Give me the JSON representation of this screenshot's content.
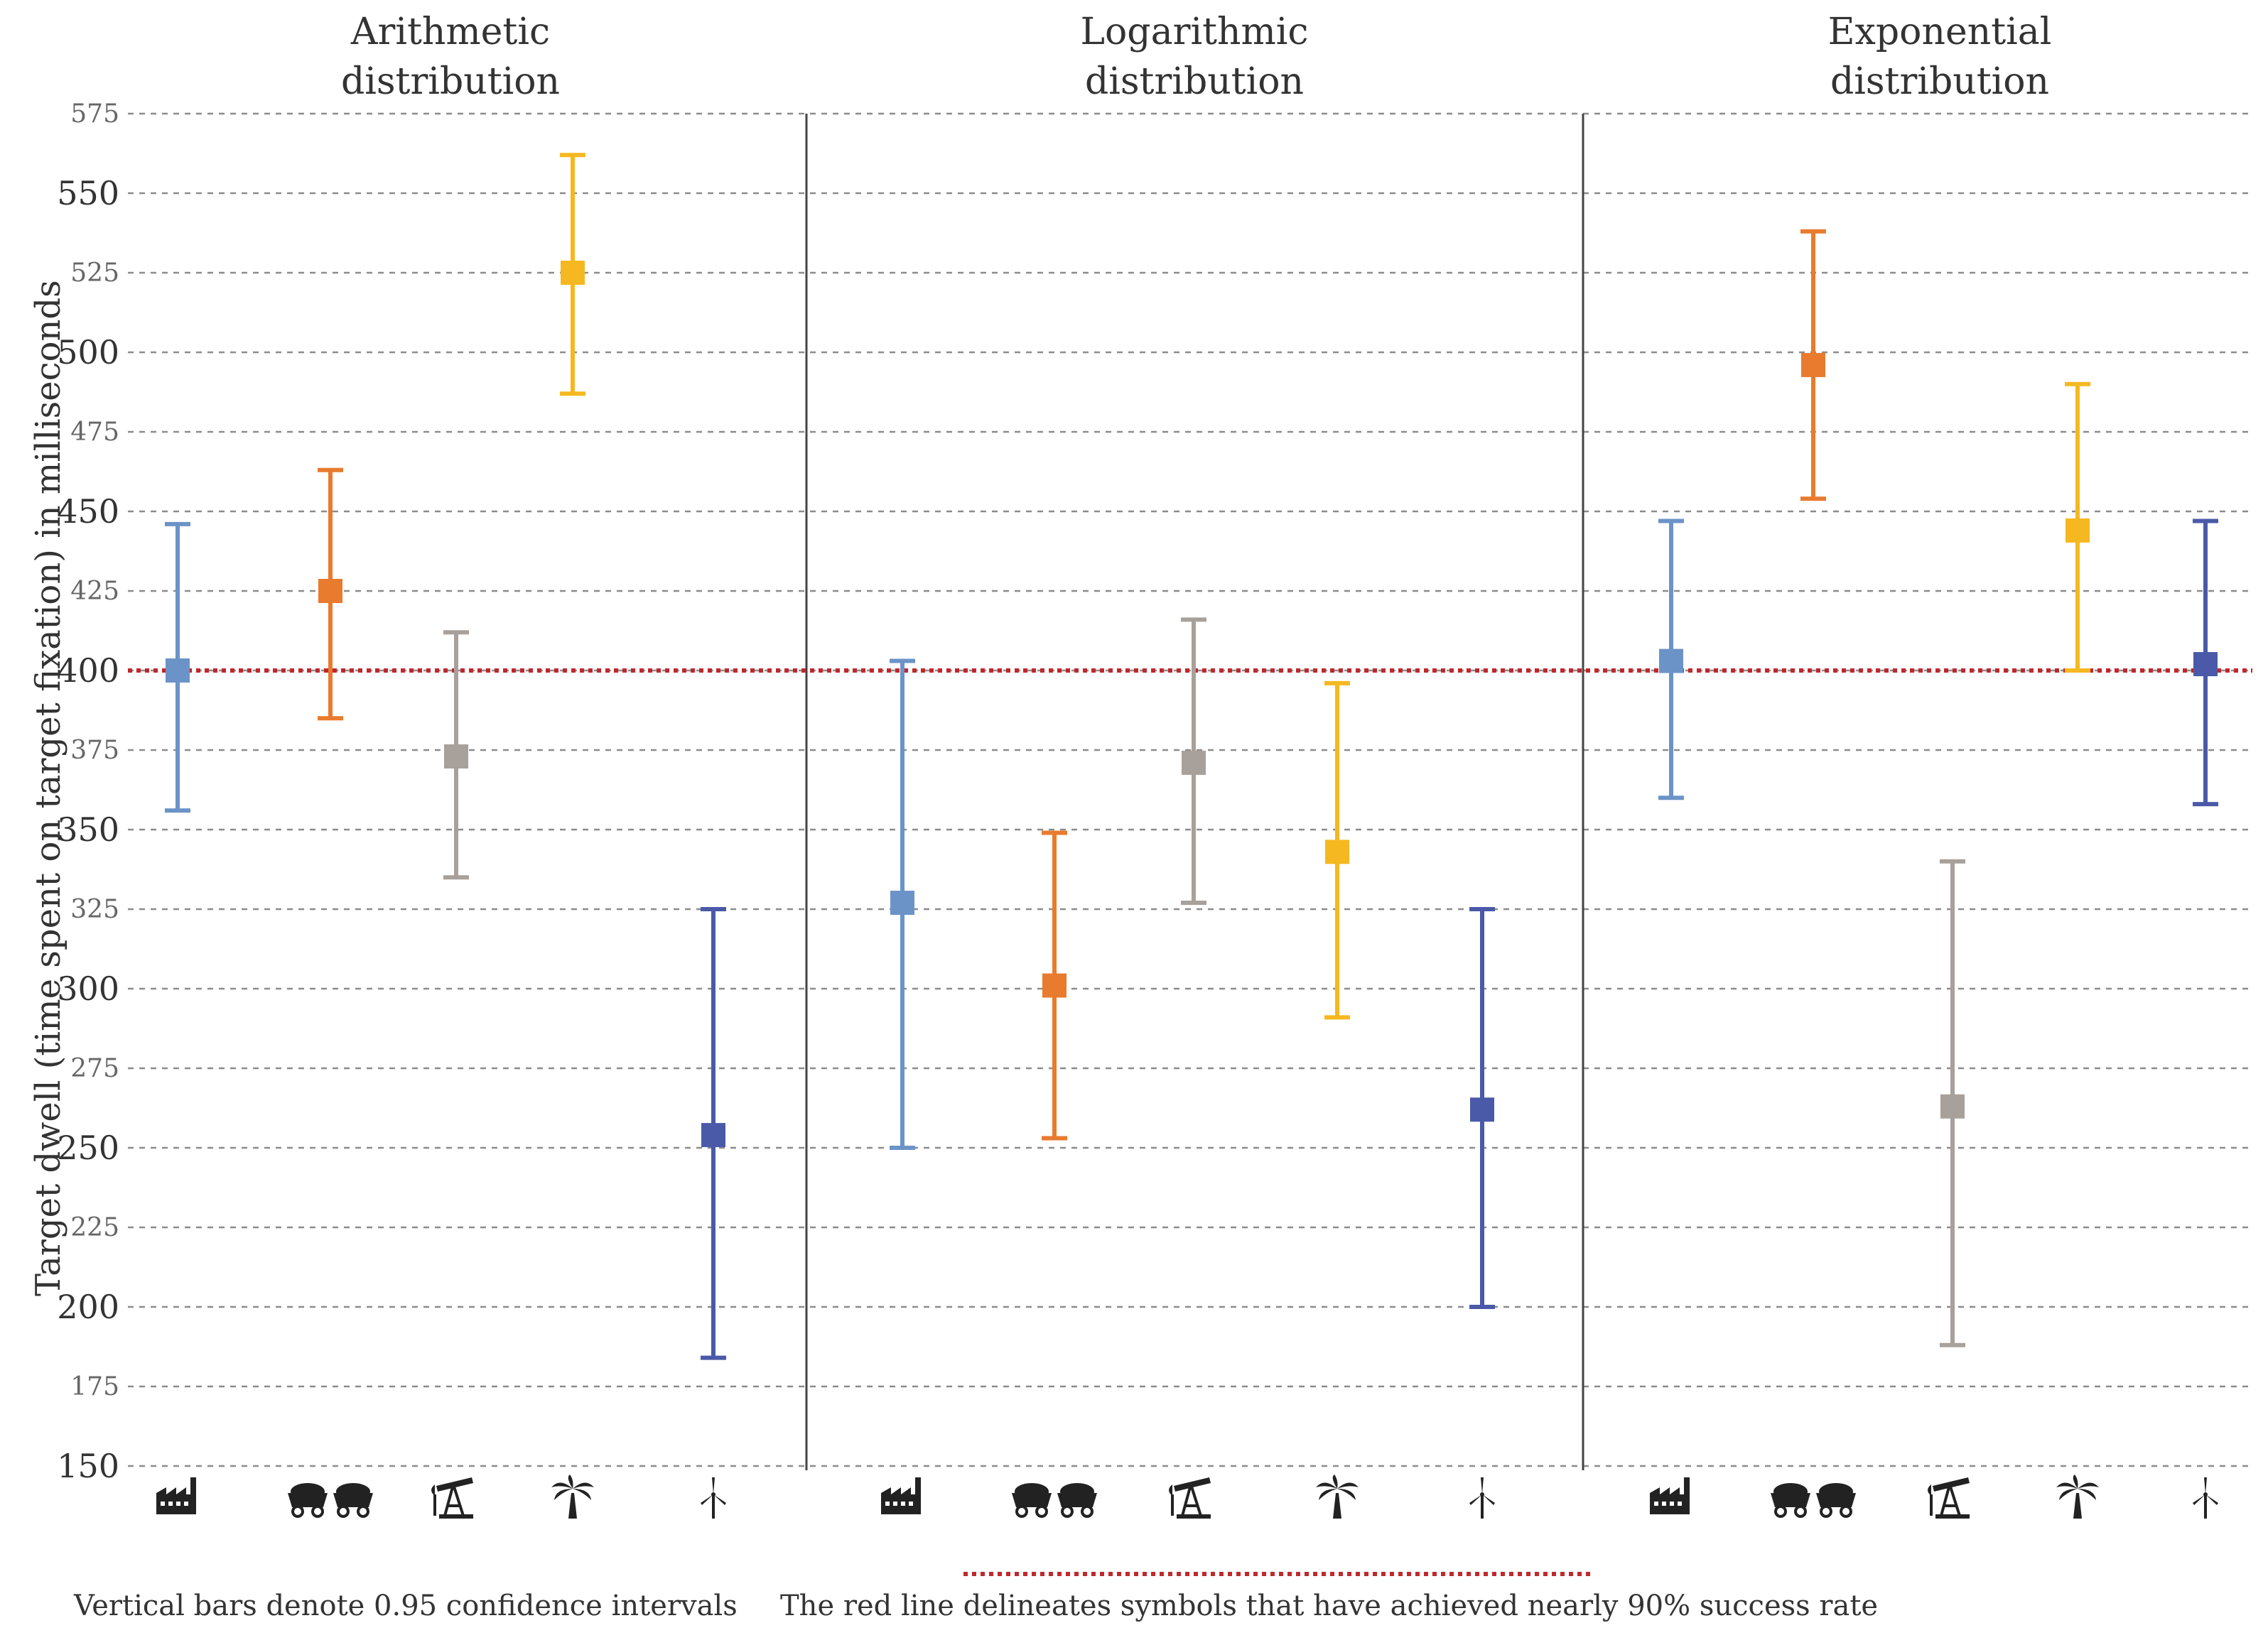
{
  "chart_data": {
    "type": "errorbar",
    "ylabel": "Target dwell (time spent on target fixation) in milliseconds",
    "ylim": [
      150,
      575
    ],
    "yticks": [
      575,
      550,
      525,
      500,
      475,
      450,
      425,
      400,
      375,
      350,
      325,
      300,
      275,
      250,
      225,
      200,
      175,
      150
    ],
    "major_ticks": [
      550,
      500,
      450,
      400,
      350,
      300,
      250,
      200,
      150
    ],
    "reference_line": {
      "value": 400,
      "color": "#c0282d",
      "label": "The red line delineates symbols that have achieved nearly 90% success rate"
    },
    "symbols": [
      {
        "name": "factory",
        "color": "#6b93c8"
      },
      {
        "name": "coal-carts",
        "color": "#e87b2e"
      },
      {
        "name": "oil-pump",
        "color": "#a8a09a"
      },
      {
        "name": "palm-tree",
        "color": "#f5b820"
      },
      {
        "name": "wind-turbine",
        "color": "#4a5aa8"
      }
    ],
    "panels": [
      {
        "title": [
          "Arithmetic",
          "distribution"
        ],
        "points": [
          {
            "mean": 400,
            "low": 356,
            "high": 446
          },
          {
            "mean": 425,
            "low": 385,
            "high": 463
          },
          {
            "mean": 373,
            "low": 335,
            "high": 412
          },
          {
            "mean": 525,
            "low": 487,
            "high": 562
          },
          {
            "mean": 254,
            "low": 184,
            "high": 325
          }
        ]
      },
      {
        "title": [
          "Logarithmic",
          "distribution"
        ],
        "points": [
          {
            "mean": 327,
            "low": 250,
            "high": 403
          },
          {
            "mean": 301,
            "low": 253,
            "high": 349
          },
          {
            "mean": 371,
            "low": 327,
            "high": 416
          },
          {
            "mean": 343,
            "low": 291,
            "high": 396
          },
          {
            "mean": 262,
            "low": 200,
            "high": 325
          }
        ]
      },
      {
        "title": [
          "Exponential",
          "distribution"
        ],
        "points": [
          {
            "mean": 403,
            "low": 360,
            "high": 447
          },
          {
            "mean": 496,
            "low": 454,
            "high": 538
          },
          {
            "mean": 263,
            "low": 188,
            "high": 340
          },
          {
            "mean": 444,
            "low": 400,
            "high": 490
          },
          {
            "mean": 402,
            "low": 358,
            "high": 447
          }
        ]
      }
    ]
  },
  "footer": {
    "ci_note": "Vertical bars denote 0.95 confidence intervals",
    "red_line_note": "The red line delineates symbols that have achieved nearly 90% success rate"
  }
}
